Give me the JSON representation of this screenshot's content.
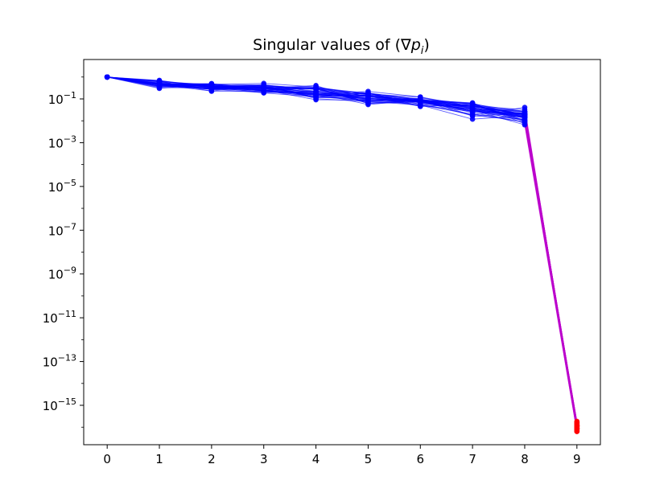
{
  "chart_data": {
    "type": "line",
    "title_main": "Singular values of (∇",
    "title_var": "p",
    "title_sub": "i",
    "title_close": ")",
    "xlabel": "",
    "ylabel": "",
    "y_scale": "log",
    "x_ticks": [
      0,
      1,
      2,
      3,
      4,
      5,
      6,
      7,
      8,
      9
    ],
    "y_tick_exponents": [
      -1,
      -3,
      -5,
      -7,
      -9,
      -11,
      -13,
      -15
    ],
    "y_tick_base": "10",
    "y_tick_minus": "−",
    "xlim": [
      -0.45,
      9.45
    ],
    "ylim_log10": [
      -16.8,
      0.8
    ],
    "grid": false,
    "legend": "none",
    "colors": {
      "main_series": "#0000ff",
      "drop_segment": "#bb00cc",
      "last_points": "#ff0000"
    },
    "series_envelope": {
      "x": [
        0,
        1,
        2,
        3,
        4,
        5,
        6,
        7,
        8,
        9
      ],
      "upper": [
        1.0,
        0.8,
        0.6,
        0.55,
        0.45,
        0.25,
        0.13,
        0.08,
        0.045,
        2e-16
      ],
      "lower": [
        1.0,
        0.3,
        0.22,
        0.16,
        0.08,
        0.045,
        0.04,
        0.011,
        0.006,
        6e-17
      ],
      "typical": [
        1.0,
        0.45,
        0.35,
        0.3,
        0.2,
        0.12,
        0.08,
        0.04,
        0.015,
        1e-16
      ]
    },
    "series_count_approx": 40
  }
}
